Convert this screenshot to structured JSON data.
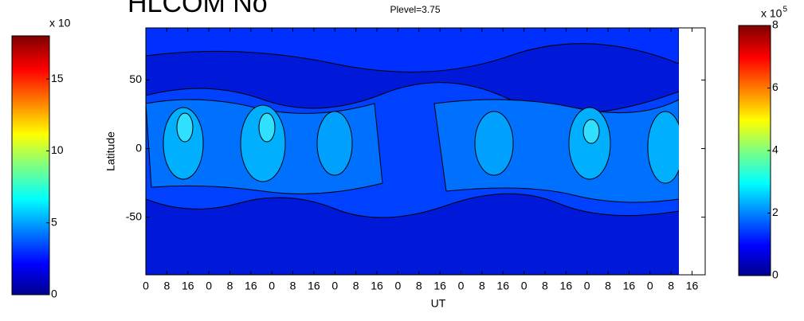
{
  "chart_data": {
    "type": "contour",
    "title": "HLCOM No",
    "subtitle": "Plevel=3.75",
    "xlabel": "UT",
    "ylabel": "Latitude",
    "xlim": [
      0,
      213
    ],
    "xticks": [
      {
        "value": 0,
        "label": "0"
      },
      {
        "value": 8,
        "label": "8"
      },
      {
        "value": 16,
        "label": "16"
      },
      {
        "value": 24,
        "label": "0"
      },
      {
        "value": 32,
        "label": "8"
      },
      {
        "value": 40,
        "label": "16"
      },
      {
        "value": 48,
        "label": "0"
      },
      {
        "value": 56,
        "label": "8"
      },
      {
        "value": 64,
        "label": "16"
      },
      {
        "value": 72,
        "label": "0"
      },
      {
        "value": 80,
        "label": "8"
      },
      {
        "value": 88,
        "label": "16"
      },
      {
        "value": 96,
        "label": "0"
      },
      {
        "value": 104,
        "label": "8"
      },
      {
        "value": 112,
        "label": "16"
      },
      {
        "value": 120,
        "label": "0"
      },
      {
        "value": 128,
        "label": "8"
      },
      {
        "value": 136,
        "label": "16"
      },
      {
        "value": 144,
        "label": "0"
      },
      {
        "value": 152,
        "label": "8"
      },
      {
        "value": 160,
        "label": "16"
      },
      {
        "value": 168,
        "label": "0"
      },
      {
        "value": 176,
        "label": "8"
      },
      {
        "value": 184,
        "label": "16"
      },
      {
        "value": 192,
        "label": "0"
      },
      {
        "value": 200,
        "label": "8"
      },
      {
        "value": 208,
        "label": "16"
      }
    ],
    "ylim": [
      -92,
      88
    ],
    "yticks": [
      -50,
      0,
      50
    ],
    "colorbars": [
      {
        "label": "x 10",
        "clim": [
          0,
          18
        ],
        "ticks": [
          0,
          5,
          10,
          15
        ]
      },
      {
        "label": "x 10",
        "exponent": "5",
        "clim": [
          0,
          8
        ],
        "ticks": [
          0,
          2,
          4,
          6,
          8
        ]
      }
    ]
  }
}
